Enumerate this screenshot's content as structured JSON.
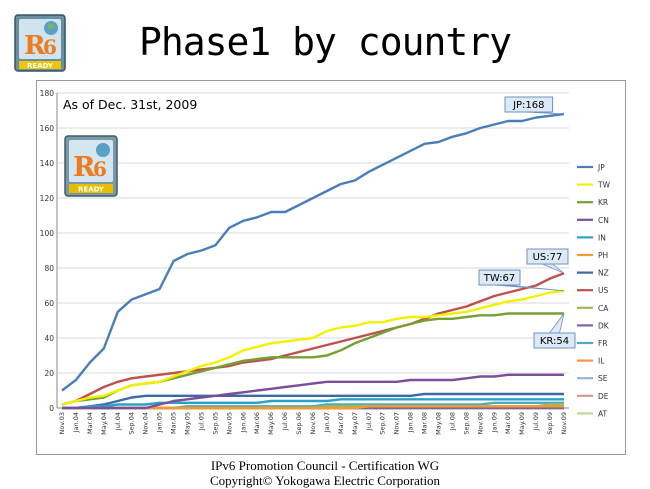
{
  "header": {
    "title": "Phase1 by country"
  },
  "logo": {
    "text": "READY"
  },
  "footer": {
    "line1": "IPv6 Promotion Council  - Certification WG",
    "line2": "Copyright©   Yokogawa Electric Corporation"
  },
  "chart_data": {
    "type": "line",
    "annotation": "As of Dec. 31st, 2009",
    "ylim": [
      0,
      180
    ],
    "yticks": [
      0,
      20,
      40,
      60,
      80,
      100,
      120,
      140,
      160,
      180
    ],
    "grid": "horizontal",
    "legend": "right",
    "x": [
      "Nov.03",
      "Jan.04",
      "Mar.04",
      "May.04",
      "Jul.04",
      "Sep.04",
      "Nov.04",
      "Jan.05",
      "Mar.05",
      "May.05",
      "Jul.05",
      "Sep.05",
      "Nov.05",
      "Jan.06",
      "Mar.06",
      "May.06",
      "Jul.06",
      "Sep.06",
      "Nov.06",
      "Jan.07",
      "Mar.07",
      "May.07",
      "Jul.07",
      "Sep.07",
      "Nov.07",
      "Jan.08",
      "Mar.08",
      "May.08",
      "Jul.08",
      "Sep.08",
      "Nov.08",
      "Jan.09",
      "Mar.09",
      "May.09",
      "Jul.09",
      "Sep.09",
      "Nov.09"
    ],
    "series": [
      {
        "name": "JP",
        "color": "#4a7ebb",
        "values": [
          10,
          16,
          26,
          34,
          55,
          62,
          65,
          68,
          84,
          88,
          90,
          93,
          103,
          107,
          109,
          112,
          112,
          116,
          120,
          124,
          128,
          130,
          135,
          139,
          143,
          147,
          151,
          152,
          155,
          157,
          160,
          162,
          164,
          164,
          166,
          167,
          168
        ]
      },
      {
        "name": "TW",
        "color": "#f2f200",
        "values": [
          2,
          4,
          6,
          7,
          10,
          13,
          14,
          15,
          18,
          21,
          24,
          26,
          29,
          33,
          35,
          37,
          38,
          39,
          40,
          44,
          46,
          47,
          49,
          49,
          51,
          52,
          52,
          53,
          54,
          55,
          57,
          59,
          61,
          62,
          64,
          66,
          67
        ]
      },
      {
        "name": "KR",
        "color": "#77a033",
        "values": [
          2,
          4,
          5,
          6,
          10,
          13,
          14,
          15,
          17,
          19,
          21,
          23,
          25,
          27,
          28,
          29,
          29,
          29,
          29,
          30,
          33,
          37,
          40,
          43,
          46,
          48,
          50,
          51,
          51,
          52,
          53,
          53,
          54,
          54,
          54,
          54,
          54
        ]
      },
      {
        "name": "CN",
        "color": "#7b4f9a",
        "values": [
          0,
          0,
          0,
          0,
          0,
          0,
          0,
          2,
          4,
          5,
          6,
          7,
          8,
          9,
          10,
          11,
          12,
          13,
          14,
          15,
          15,
          15,
          15,
          15,
          15,
          16,
          16,
          16,
          16,
          17,
          18,
          18,
          19,
          19,
          19,
          19,
          19
        ]
      },
      {
        "name": "IN",
        "color": "#2aa2c6",
        "values": [
          0,
          0,
          1,
          1,
          2,
          2,
          2,
          3,
          3,
          3,
          3,
          3,
          3,
          3,
          3,
          4,
          4,
          4,
          4,
          4,
          5,
          5,
          5,
          5,
          5,
          5,
          5,
          5,
          5,
          5,
          5,
          5,
          5,
          5,
          5,
          5,
          5
        ]
      },
      {
        "name": "PH",
        "color": "#f59a2b",
        "values": [
          0,
          0,
          0,
          0,
          0,
          0,
          0,
          0,
          0,
          0,
          0,
          0,
          0,
          0,
          0,
          0,
          0,
          0,
          0,
          0,
          0,
          0,
          1,
          1,
          1,
          1,
          1,
          1,
          1,
          1,
          1,
          1,
          1,
          1,
          1,
          1,
          1
        ]
      },
      {
        "name": "NZ",
        "color": "#3d6aa3",
        "values": [
          0,
          0,
          1,
          2,
          4,
          6,
          7,
          7,
          7,
          7,
          7,
          7,
          7,
          7,
          7,
          7,
          7,
          7,
          7,
          7,
          7,
          7,
          7,
          7,
          7,
          7,
          8,
          8,
          8,
          8,
          8,
          8,
          8,
          8,
          8,
          8,
          8
        ]
      },
      {
        "name": "US",
        "color": "#c0504d",
        "values": [
          2,
          4,
          8,
          12,
          15,
          17,
          18,
          19,
          20,
          21,
          22,
          23,
          24,
          26,
          27,
          28,
          30,
          32,
          34,
          36,
          38,
          40,
          42,
          44,
          46,
          48,
          51,
          54,
          56,
          58,
          61,
          64,
          66,
          68,
          70,
          74,
          77
        ]
      },
      {
        "name": "CA",
        "color": "#9bbb59",
        "values": [
          0,
          0,
          0,
          0,
          0,
          0,
          0,
          0,
          0,
          0,
          0,
          0,
          0,
          0,
          0,
          0,
          0,
          0,
          0,
          1,
          1,
          1,
          1,
          1,
          1,
          1,
          1,
          1,
          1,
          1,
          1,
          1,
          1,
          1,
          1,
          2,
          2
        ]
      },
      {
        "name": "DK",
        "color": "#8064a2",
        "values": [
          0,
          0,
          0,
          0,
          0,
          0,
          0,
          0,
          0,
          0,
          0,
          0,
          0,
          0,
          0,
          0,
          0,
          0,
          0,
          0,
          0,
          0,
          0,
          0,
          0,
          0,
          0,
          0,
          0,
          0,
          0,
          0,
          0,
          0,
          0,
          0,
          0
        ]
      },
      {
        "name": "FR",
        "color": "#4bacc6",
        "values": [
          0,
          0,
          0,
          0,
          0,
          0,
          0,
          0,
          0,
          1,
          1,
          1,
          1,
          1,
          1,
          1,
          1,
          1,
          1,
          2,
          2,
          2,
          2,
          2,
          2,
          2,
          2,
          2,
          2,
          2,
          2,
          3,
          3,
          3,
          3,
          3,
          3
        ]
      },
      {
        "name": "IL",
        "color": "#f79646",
        "values": [
          0,
          0,
          0,
          0,
          0,
          0,
          0,
          0,
          0,
          0,
          0,
          0,
          0,
          0,
          0,
          0,
          0,
          0,
          0,
          0,
          0,
          0,
          0,
          0,
          0,
          0,
          0,
          0,
          0,
          0,
          0,
          0,
          0,
          0,
          0,
          0,
          0
        ]
      },
      {
        "name": "SE",
        "color": "#95b3d7",
        "values": [
          0,
          0,
          0,
          0,
          0,
          0,
          0,
          0,
          0,
          0,
          0,
          0,
          0,
          0,
          0,
          0,
          0,
          0,
          0,
          0,
          0,
          0,
          0,
          0,
          0,
          0,
          0,
          0,
          0,
          0,
          0,
          0,
          0,
          0,
          0,
          0,
          0
        ]
      },
      {
        "name": "DE",
        "color": "#d99694",
        "values": [
          0,
          0,
          0,
          0,
          0,
          0,
          0,
          0,
          0,
          0,
          0,
          0,
          0,
          0,
          0,
          0,
          0,
          0,
          0,
          0,
          0,
          0,
          0,
          0,
          0,
          0,
          0,
          0,
          0,
          0,
          0,
          0,
          0,
          0,
          0,
          0,
          0
        ]
      },
      {
        "name": "AT",
        "color": "#c3d69b",
        "values": [
          0,
          0,
          0,
          0,
          0,
          0,
          0,
          0,
          0,
          0,
          0,
          0,
          0,
          0,
          0,
          0,
          0,
          0,
          0,
          0,
          0,
          0,
          0,
          0,
          0,
          0,
          0,
          0,
          0,
          0,
          0,
          0,
          0,
          0,
          0,
          0,
          0
        ]
      }
    ],
    "callouts": [
      {
        "text": "JP:168",
        "series": "JP"
      },
      {
        "text": "US:77",
        "series": "US"
      },
      {
        "text": "TW:67",
        "series": "TW"
      },
      {
        "text": "KR:54",
        "series": "KR"
      }
    ]
  }
}
